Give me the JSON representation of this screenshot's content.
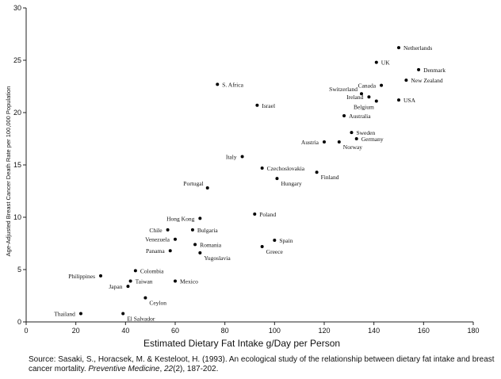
{
  "chart_data": {
    "type": "scatter",
    "title": "",
    "xlabel": "Estimated Dietary Fat Intake g/Day per Person",
    "ylabel": "Age-Adjusted Breast Cancer Death Rate per 100,000 Population",
    "xlim": [
      0,
      180
    ],
    "ylim": [
      0,
      30
    ],
    "xticks": [
      0,
      20,
      40,
      60,
      80,
      100,
      120,
      140,
      160,
      180
    ],
    "yticks": [
      0,
      5,
      10,
      15,
      20,
      25,
      30
    ],
    "points": [
      {
        "label": "Netherlands",
        "x": 150,
        "y": 26.2,
        "pos": "right"
      },
      {
        "label": "UK",
        "x": 141,
        "y": 24.8,
        "pos": "right"
      },
      {
        "label": "Denmark",
        "x": 158,
        "y": 24.1,
        "pos": "right"
      },
      {
        "label": "New Zealand",
        "x": 153,
        "y": 23.1,
        "pos": "right"
      },
      {
        "label": "Canada",
        "x": 143,
        "y": 22.6,
        "pos": "left"
      },
      {
        "label": "S. Africa",
        "x": 77,
        "y": 22.7,
        "pos": "right"
      },
      {
        "label": "Switzerland",
        "x": 135,
        "y": 21.8,
        "pos": "above-left"
      },
      {
        "label": "Ireland",
        "x": 138,
        "y": 21.5,
        "pos": "left"
      },
      {
        "label": "USA",
        "x": 150,
        "y": 21.2,
        "pos": "right"
      },
      {
        "label": "Belgium",
        "x": 141,
        "y": 21.1,
        "pos": "below-left"
      },
      {
        "label": "Israel",
        "x": 93,
        "y": 20.7,
        "pos": "right"
      },
      {
        "label": "Australia",
        "x": 128,
        "y": 19.7,
        "pos": "right"
      },
      {
        "label": "Sweden",
        "x": 131,
        "y": 18.1,
        "pos": "right"
      },
      {
        "label": "Germany",
        "x": 133,
        "y": 17.5,
        "pos": "right"
      },
      {
        "label": "Austria",
        "x": 120,
        "y": 17.2,
        "pos": "left"
      },
      {
        "label": "Norway",
        "x": 126,
        "y": 17.2,
        "pos": "below-right"
      },
      {
        "label": "Italy",
        "x": 87,
        "y": 15.8,
        "pos": "left"
      },
      {
        "label": "Czechoslovakia",
        "x": 95,
        "y": 14.7,
        "pos": "right"
      },
      {
        "label": "Finland",
        "x": 117,
        "y": 14.3,
        "pos": "below-right"
      },
      {
        "label": "Hungary",
        "x": 101,
        "y": 13.7,
        "pos": "below-right"
      },
      {
        "label": "Portugal",
        "x": 73,
        "y": 12.8,
        "pos": "above-left"
      },
      {
        "label": "Hong Kong",
        "x": 70,
        "y": 9.9,
        "pos": "left"
      },
      {
        "label": "Poland",
        "x": 92,
        "y": 10.3,
        "pos": "right"
      },
      {
        "label": "Chile",
        "x": 57,
        "y": 8.8,
        "pos": "left"
      },
      {
        "label": "Bulgaria",
        "x": 67,
        "y": 8.8,
        "pos": "right"
      },
      {
        "label": "Venezuela",
        "x": 60,
        "y": 7.9,
        "pos": "left"
      },
      {
        "label": "Spain",
        "x": 100,
        "y": 7.8,
        "pos": "right"
      },
      {
        "label": "Romania",
        "x": 68,
        "y": 7.4,
        "pos": "right"
      },
      {
        "label": "Greece",
        "x": 95,
        "y": 7.2,
        "pos": "below-right"
      },
      {
        "label": "Panama",
        "x": 58,
        "y": 6.8,
        "pos": "left"
      },
      {
        "label": "Yugoslavia",
        "x": 70,
        "y": 6.6,
        "pos": "below-right"
      },
      {
        "label": "Colombia",
        "x": 44,
        "y": 4.9,
        "pos": "right"
      },
      {
        "label": "Philippines",
        "x": 30,
        "y": 4.4,
        "pos": "left"
      },
      {
        "label": "Taiwan",
        "x": 42,
        "y": 3.9,
        "pos": "right"
      },
      {
        "label": "Mexico",
        "x": 60,
        "y": 3.9,
        "pos": "right"
      },
      {
        "label": "Japan",
        "x": 41,
        "y": 3.4,
        "pos": "left"
      },
      {
        "label": "Ceylon",
        "x": 48,
        "y": 2.3,
        "pos": "below-right"
      },
      {
        "label": "Thailand",
        "x": 22,
        "y": 0.8,
        "pos": "left"
      },
      {
        "label": "El Salvador",
        "x": 39,
        "y": 0.8,
        "pos": "below-right"
      }
    ]
  },
  "caption": {
    "source_prefix": "Source: Sasaki, S., Horacsek, M. & Kesteloot, H. (1993). An ecological study of the relationship between dietary fat intake and breast cancer mortality. ",
    "journal": "Preventive Medicine",
    "volume_prefix": ", ",
    "volume": "22",
    "issue_pages": "(2), 187-202."
  }
}
